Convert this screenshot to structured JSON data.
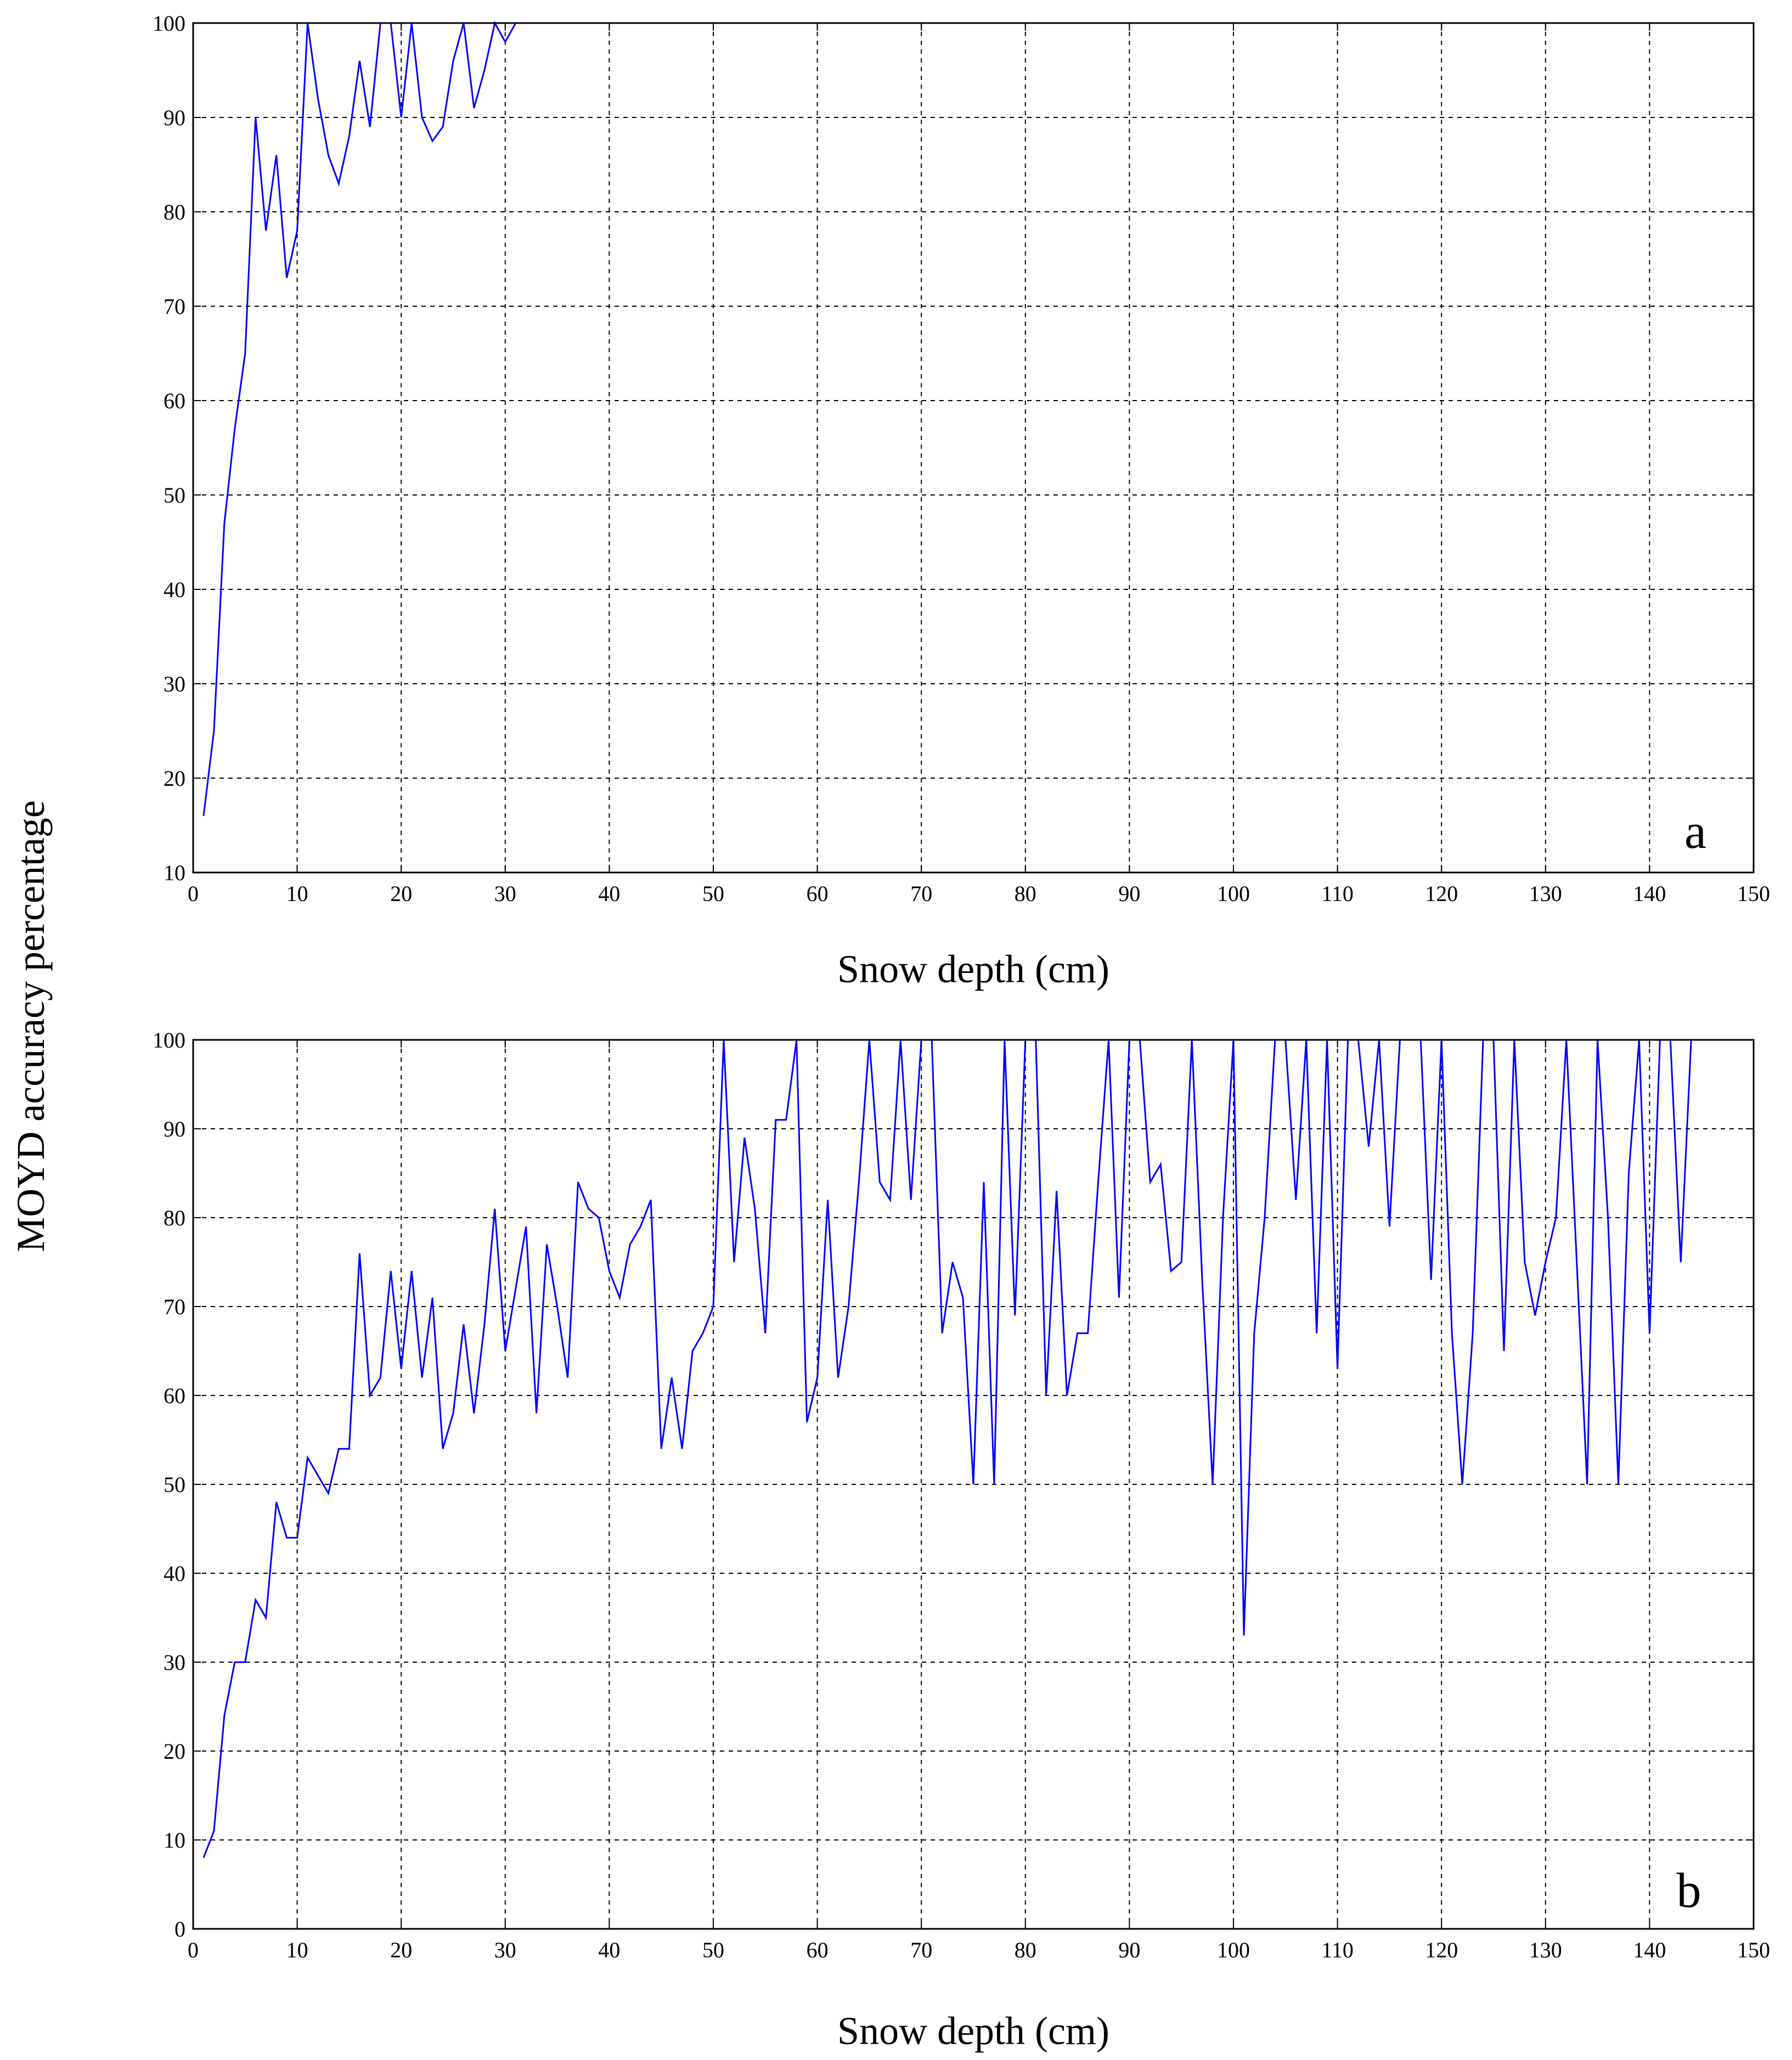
{
  "figure": {
    "ylabel": "MOYD accuracy percentage"
  },
  "chart_data": [
    {
      "type": "line",
      "panel_label": "a",
      "title": "",
      "xlabel": "Snow depth (cm)",
      "ylabel": "MOYD accuracy percentage",
      "xlim": [
        0,
        150
      ],
      "ylim": [
        10,
        100
      ],
      "xticks": [
        0,
        10,
        20,
        30,
        40,
        50,
        60,
        70,
        80,
        90,
        100,
        110,
        120,
        130,
        140,
        150
      ],
      "yticks": [
        10,
        20,
        30,
        40,
        50,
        60,
        70,
        80,
        90,
        100
      ],
      "grid": true,
      "series": [
        {
          "color": "#0000ff",
          "x": [
            1,
            2,
            3,
            4,
            5,
            6,
            7,
            8,
            9,
            10,
            11,
            12,
            13,
            14,
            15,
            16,
            17,
            18,
            19,
            20,
            21,
            22,
            23,
            24,
            25,
            26,
            27,
            28,
            29,
            30,
            31,
            35,
            40,
            50,
            60,
            70,
            80,
            90,
            100,
            110,
            120,
            130,
            140,
            143
          ],
          "y": [
            16,
            25,
            47,
            57,
            65,
            90,
            78,
            86,
            73,
            78,
            100,
            92,
            86,
            83,
            88,
            96,
            89,
            100,
            100,
            90,
            100,
            90,
            87.5,
            89,
            96,
            100,
            91,
            95,
            100,
            98,
            100,
            100,
            100,
            100,
            100,
            100,
            100,
            100,
            100,
            100,
            100,
            100,
            100,
            100
          ]
        }
      ]
    },
    {
      "type": "line",
      "panel_label": "b",
      "title": "",
      "xlabel": "Snow depth (cm)",
      "ylabel": "MOYD accuracy percentage",
      "xlim": [
        0,
        150
      ],
      "ylim": [
        0,
        100
      ],
      "xticks": [
        0,
        10,
        20,
        30,
        40,
        50,
        60,
        70,
        80,
        90,
        100,
        110,
        120,
        130,
        140,
        150
      ],
      "yticks": [
        0,
        10,
        20,
        30,
        40,
        50,
        60,
        70,
        80,
        90,
        100
      ],
      "grid": true,
      "series": [
        {
          "color": "#0000ff",
          "x": [
            1,
            2,
            3,
            4,
            5,
            6,
            7,
            8,
            9,
            10,
            11,
            12,
            13,
            14,
            15,
            16,
            17,
            18,
            19,
            20,
            21,
            22,
            23,
            24,
            25,
            26,
            27,
            28,
            29,
            30,
            31,
            32,
            33,
            34,
            35,
            36,
            37,
            38,
            39,
            40,
            41,
            42,
            43,
            44,
            45,
            46,
            47,
            48,
            49,
            50,
            51,
            52,
            53,
            54,
            55,
            56,
            57,
            58,
            59,
            60,
            61,
            62,
            63,
            64,
            65,
            66,
            67,
            68,
            69,
            70,
            71,
            72,
            73,
            74,
            75,
            76,
            77,
            78,
            79,
            80,
            81,
            82,
            83,
            84,
            85,
            86,
            87,
            88,
            89,
            90,
            91,
            92,
            93,
            94,
            95,
            96,
            97,
            98,
            99,
            100,
            101,
            102,
            103,
            104,
            105,
            106,
            107,
            108,
            109,
            110,
            111,
            112,
            113,
            114,
            115,
            116,
            117,
            118,
            119,
            120,
            121,
            122,
            123,
            124,
            125,
            126,
            127,
            128,
            129,
            130,
            131,
            132,
            133,
            134,
            135,
            136,
            137,
            138,
            139,
            140,
            141,
            142,
            143,
            144,
            145
          ],
          "y": [
            8,
            11,
            24,
            30,
            30,
            37,
            35,
            48,
            44,
            44,
            53,
            51,
            49,
            54,
            54,
            76,
            60,
            62,
            74,
            63,
            74,
            62,
            71,
            54,
            58,
            68,
            58,
            68,
            81,
            65,
            72,
            79,
            58,
            77,
            70,
            62,
            84,
            81,
            80,
            74,
            71,
            77,
            79,
            82,
            54,
            62,
            54,
            65,
            67,
            70,
            100,
            75,
            89,
            81,
            67,
            91,
            91,
            100,
            57,
            62,
            82,
            62,
            70,
            84,
            100,
            84,
            82,
            100,
            82,
            100,
            100,
            67,
            75,
            71,
            50,
            84,
            50,
            100,
            69,
            100,
            100,
            60,
            83,
            60,
            67,
            67,
            84,
            100,
            71,
            100,
            100,
            84,
            86,
            74,
            75,
            100,
            73,
            50,
            80,
            100,
            33,
            67,
            80,
            100,
            100,
            82,
            100,
            67,
            100,
            63,
            100,
            100,
            88,
            100,
            79,
            100,
            100,
            100,
            73,
            100,
            67,
            50,
            67,
            100,
            100,
            65,
            100,
            75,
            69,
            75,
            80,
            100,
            75,
            50,
            100,
            80,
            50,
            85,
            100,
            67,
            100,
            100,
            75,
            100,
            100
          ]
        }
      ]
    }
  ]
}
